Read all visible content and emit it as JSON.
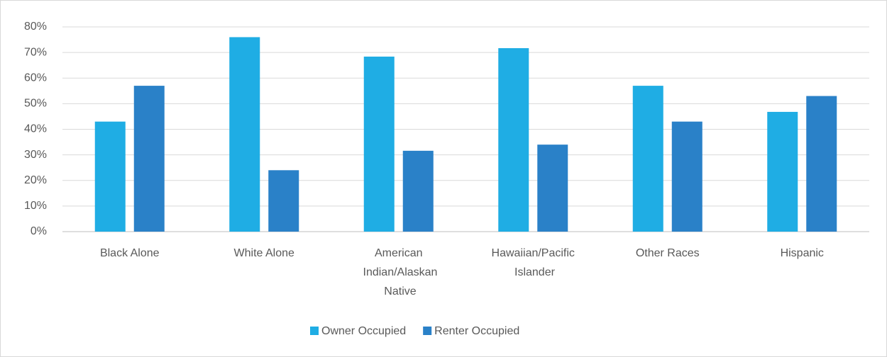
{
  "chart_data": {
    "type": "bar",
    "categories": [
      "Black Alone",
      "White Alone",
      "American Indian/Alaskan Native",
      "Hawaiian/Pacific Islander",
      "Other Races",
      "Hispanic"
    ],
    "series": [
      {
        "name": "Owner Occupied",
        "color": "#1fade4",
        "values": [
          43,
          76,
          68.4,
          71.7,
          57,
          46.8
        ]
      },
      {
        "name": "Renter Occupied",
        "color": "#2a81c8",
        "values": [
          57,
          24,
          31.6,
          34,
          43,
          53
        ]
      }
    ],
    "ylim": [
      0,
      80
    ],
    "yticks": [
      {
        "value": 0,
        "label": "0%"
      },
      {
        "value": 10,
        "label": "10%"
      },
      {
        "value": 20,
        "label": "20%"
      },
      {
        "value": 30,
        "label": "30%"
      },
      {
        "value": 40,
        "label": "40%"
      },
      {
        "value": 50,
        "label": "50%"
      },
      {
        "value": 60,
        "label": "60%"
      },
      {
        "value": 70,
        "label": "70%"
      },
      {
        "value": 80,
        "label": "80%"
      }
    ],
    "grid": true,
    "legend": "bottom"
  }
}
